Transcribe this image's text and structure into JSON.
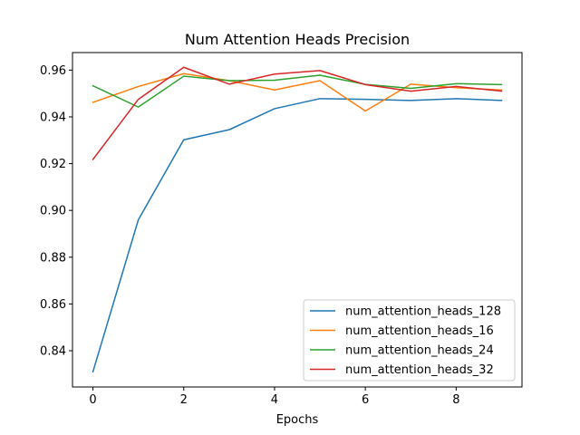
{
  "chart_data": {
    "type": "line",
    "title": "Num Attention Heads Precision",
    "xlabel": "Epochs",
    "ylabel": "",
    "xlim": [
      -0.45,
      9.45
    ],
    "ylim": [
      0.8245,
      0.9675
    ],
    "xticks": [
      0,
      2,
      4,
      6,
      8
    ],
    "yticks": [
      0.84,
      0.86,
      0.88,
      0.9,
      0.92,
      0.94,
      0.96
    ],
    "ytick_labels": [
      "0.84",
      "0.86",
      "0.88",
      "0.90",
      "0.92",
      "0.94",
      "0.96"
    ],
    "grid": false,
    "legend_position": "lower-right",
    "x": [
      0,
      1,
      2,
      3,
      4,
      5,
      6,
      7,
      8,
      9
    ],
    "series": [
      {
        "name": "num_attention_heads_128",
        "color": "#1f77b4",
        "values": [
          0.831,
          0.896,
          0.9302,
          0.9345,
          0.9435,
          0.9478,
          0.9475,
          0.947,
          0.9478,
          0.947
        ]
      },
      {
        "name": "num_attention_heads_16",
        "color": "#ff7f0e",
        "values": [
          0.9462,
          0.953,
          0.9585,
          0.9555,
          0.9515,
          0.9555,
          0.9425,
          0.954,
          0.9525,
          0.9515
        ]
      },
      {
        "name": "num_attention_heads_24",
        "color": "#2ca02c",
        "values": [
          0.9533,
          0.9442,
          0.9574,
          0.9555,
          0.9557,
          0.9578,
          0.9539,
          0.9522,
          0.9542,
          0.9538
        ]
      },
      {
        "name": "num_attention_heads_32",
        "color": "#d62728",
        "values": [
          0.9218,
          0.9475,
          0.9612,
          0.954,
          0.9583,
          0.9598,
          0.9538,
          0.951,
          0.953,
          0.951
        ]
      }
    ]
  }
}
